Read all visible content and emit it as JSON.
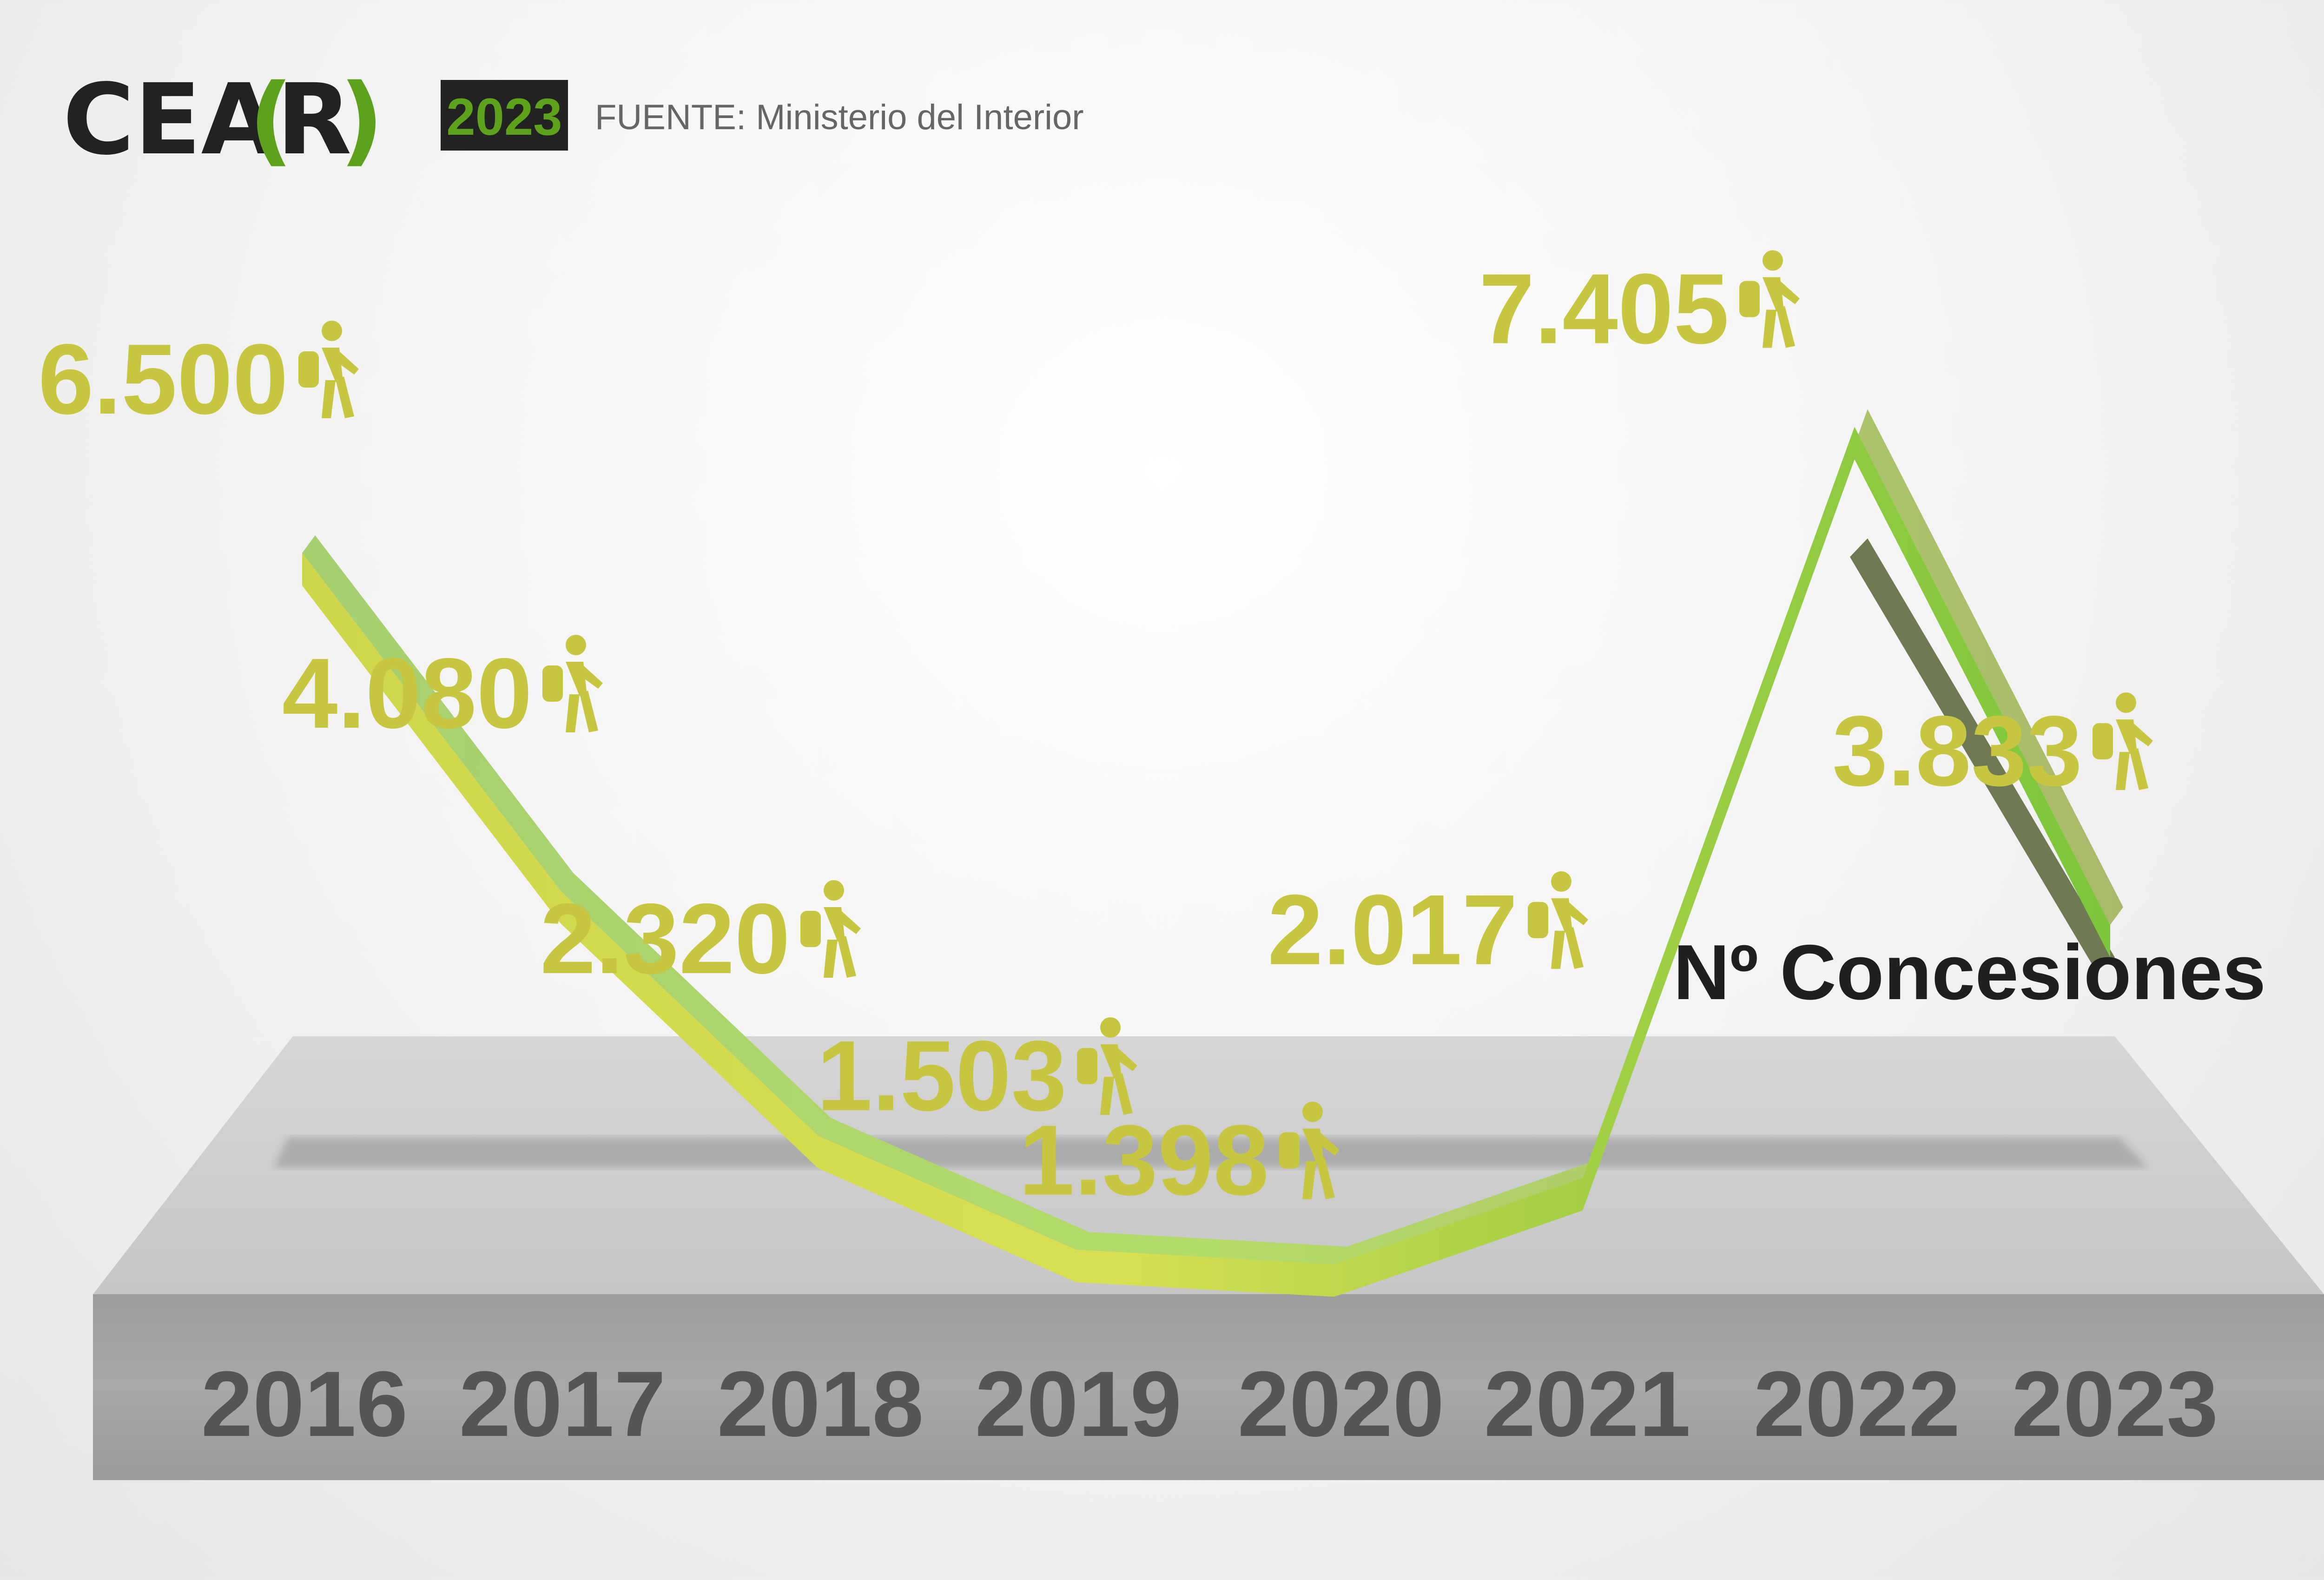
{
  "header": {
    "logo_main": "CEA",
    "logo_bracket_open": "(",
    "logo_letter": "R",
    "logo_bracket_close": ")",
    "year_badge": "2023",
    "source": "FUENTE: Ministerio del Interior"
  },
  "colors": {
    "brand_green": "#5ea11d",
    "label_olive": "#c6c640",
    "line_start": "#cfd64b",
    "line_mid": "#d8df52",
    "line_end": "#7cc63c",
    "platform_top": "#cbcbcb",
    "platform_front": "#a4a4a4",
    "year_text": "#555555",
    "badge_bg": "#222222"
  },
  "chart_data": {
    "type": "line",
    "title": "",
    "series": [
      {
        "name": "Nº Concesiones",
        "values": [
          6500,
          4080,
          2320,
          1503,
          1398,
          2017,
          7405,
          3833
        ]
      }
    ],
    "categories": [
      "2016",
      "2017",
      "2018",
      "2019",
      "2020",
      "2021",
      "2022",
      "2023"
    ],
    "data_labels": [
      "6.500",
      "4.080",
      "2.320",
      "1.503",
      "1.398",
      "2.017",
      "7.405",
      "3.833"
    ],
    "series_label": "Nº Concesiones",
    "icon": "walking-person-with-backpack-icon",
    "xlabel": "",
    "ylabel": "",
    "grid": false
  }
}
